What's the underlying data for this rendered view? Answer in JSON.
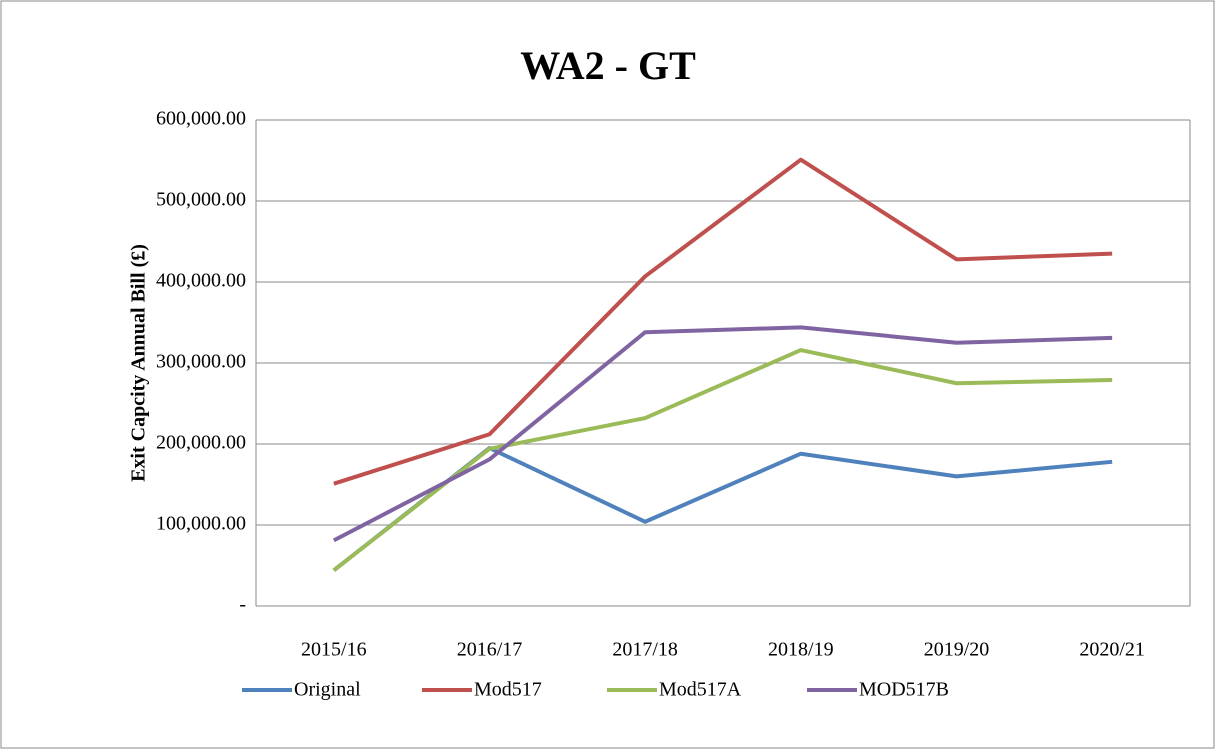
{
  "chart_data": {
    "type": "line",
    "title": "WA2 - GT",
    "ylabel": "Exit Capcity Annual Bill (£)",
    "categories": [
      "2015/16",
      "2016/17",
      "2017/18",
      "2018/19",
      "2019/20",
      "2020/21"
    ],
    "series": [
      {
        "name": "Original",
        "color": "#4f81bd",
        "values": [
          44000,
          195000,
          104000,
          188000,
          160000,
          178000
        ]
      },
      {
        "name": "Mod517",
        "color": "#c0504d",
        "values": [
          151000,
          212000,
          407000,
          551000,
          428000,
          435000
        ]
      },
      {
        "name": "Mod517A",
        "color": "#9bbb59",
        "values": [
          44000,
          194000,
          232000,
          316000,
          275000,
          279000
        ]
      },
      {
        "name": "MOD517B",
        "color": "#8064a2",
        "values": [
          81000,
          181000,
          338000,
          344000,
          325000,
          331000
        ]
      }
    ],
    "ylim": [
      0,
      600000
    ],
    "yticks": [
      {
        "value": 0,
        "label": "-"
      },
      {
        "value": 100000,
        "label": "100,000.00"
      },
      {
        "value": 200000,
        "label": "200,000.00"
      },
      {
        "value": 300000,
        "label": "300,000.00"
      },
      {
        "value": 400000,
        "label": "400,000.00"
      },
      {
        "value": 500000,
        "label": "500,000.00"
      },
      {
        "value": 600000,
        "label": "600,000.00"
      }
    ],
    "grid": true,
    "legend": "bottom"
  }
}
